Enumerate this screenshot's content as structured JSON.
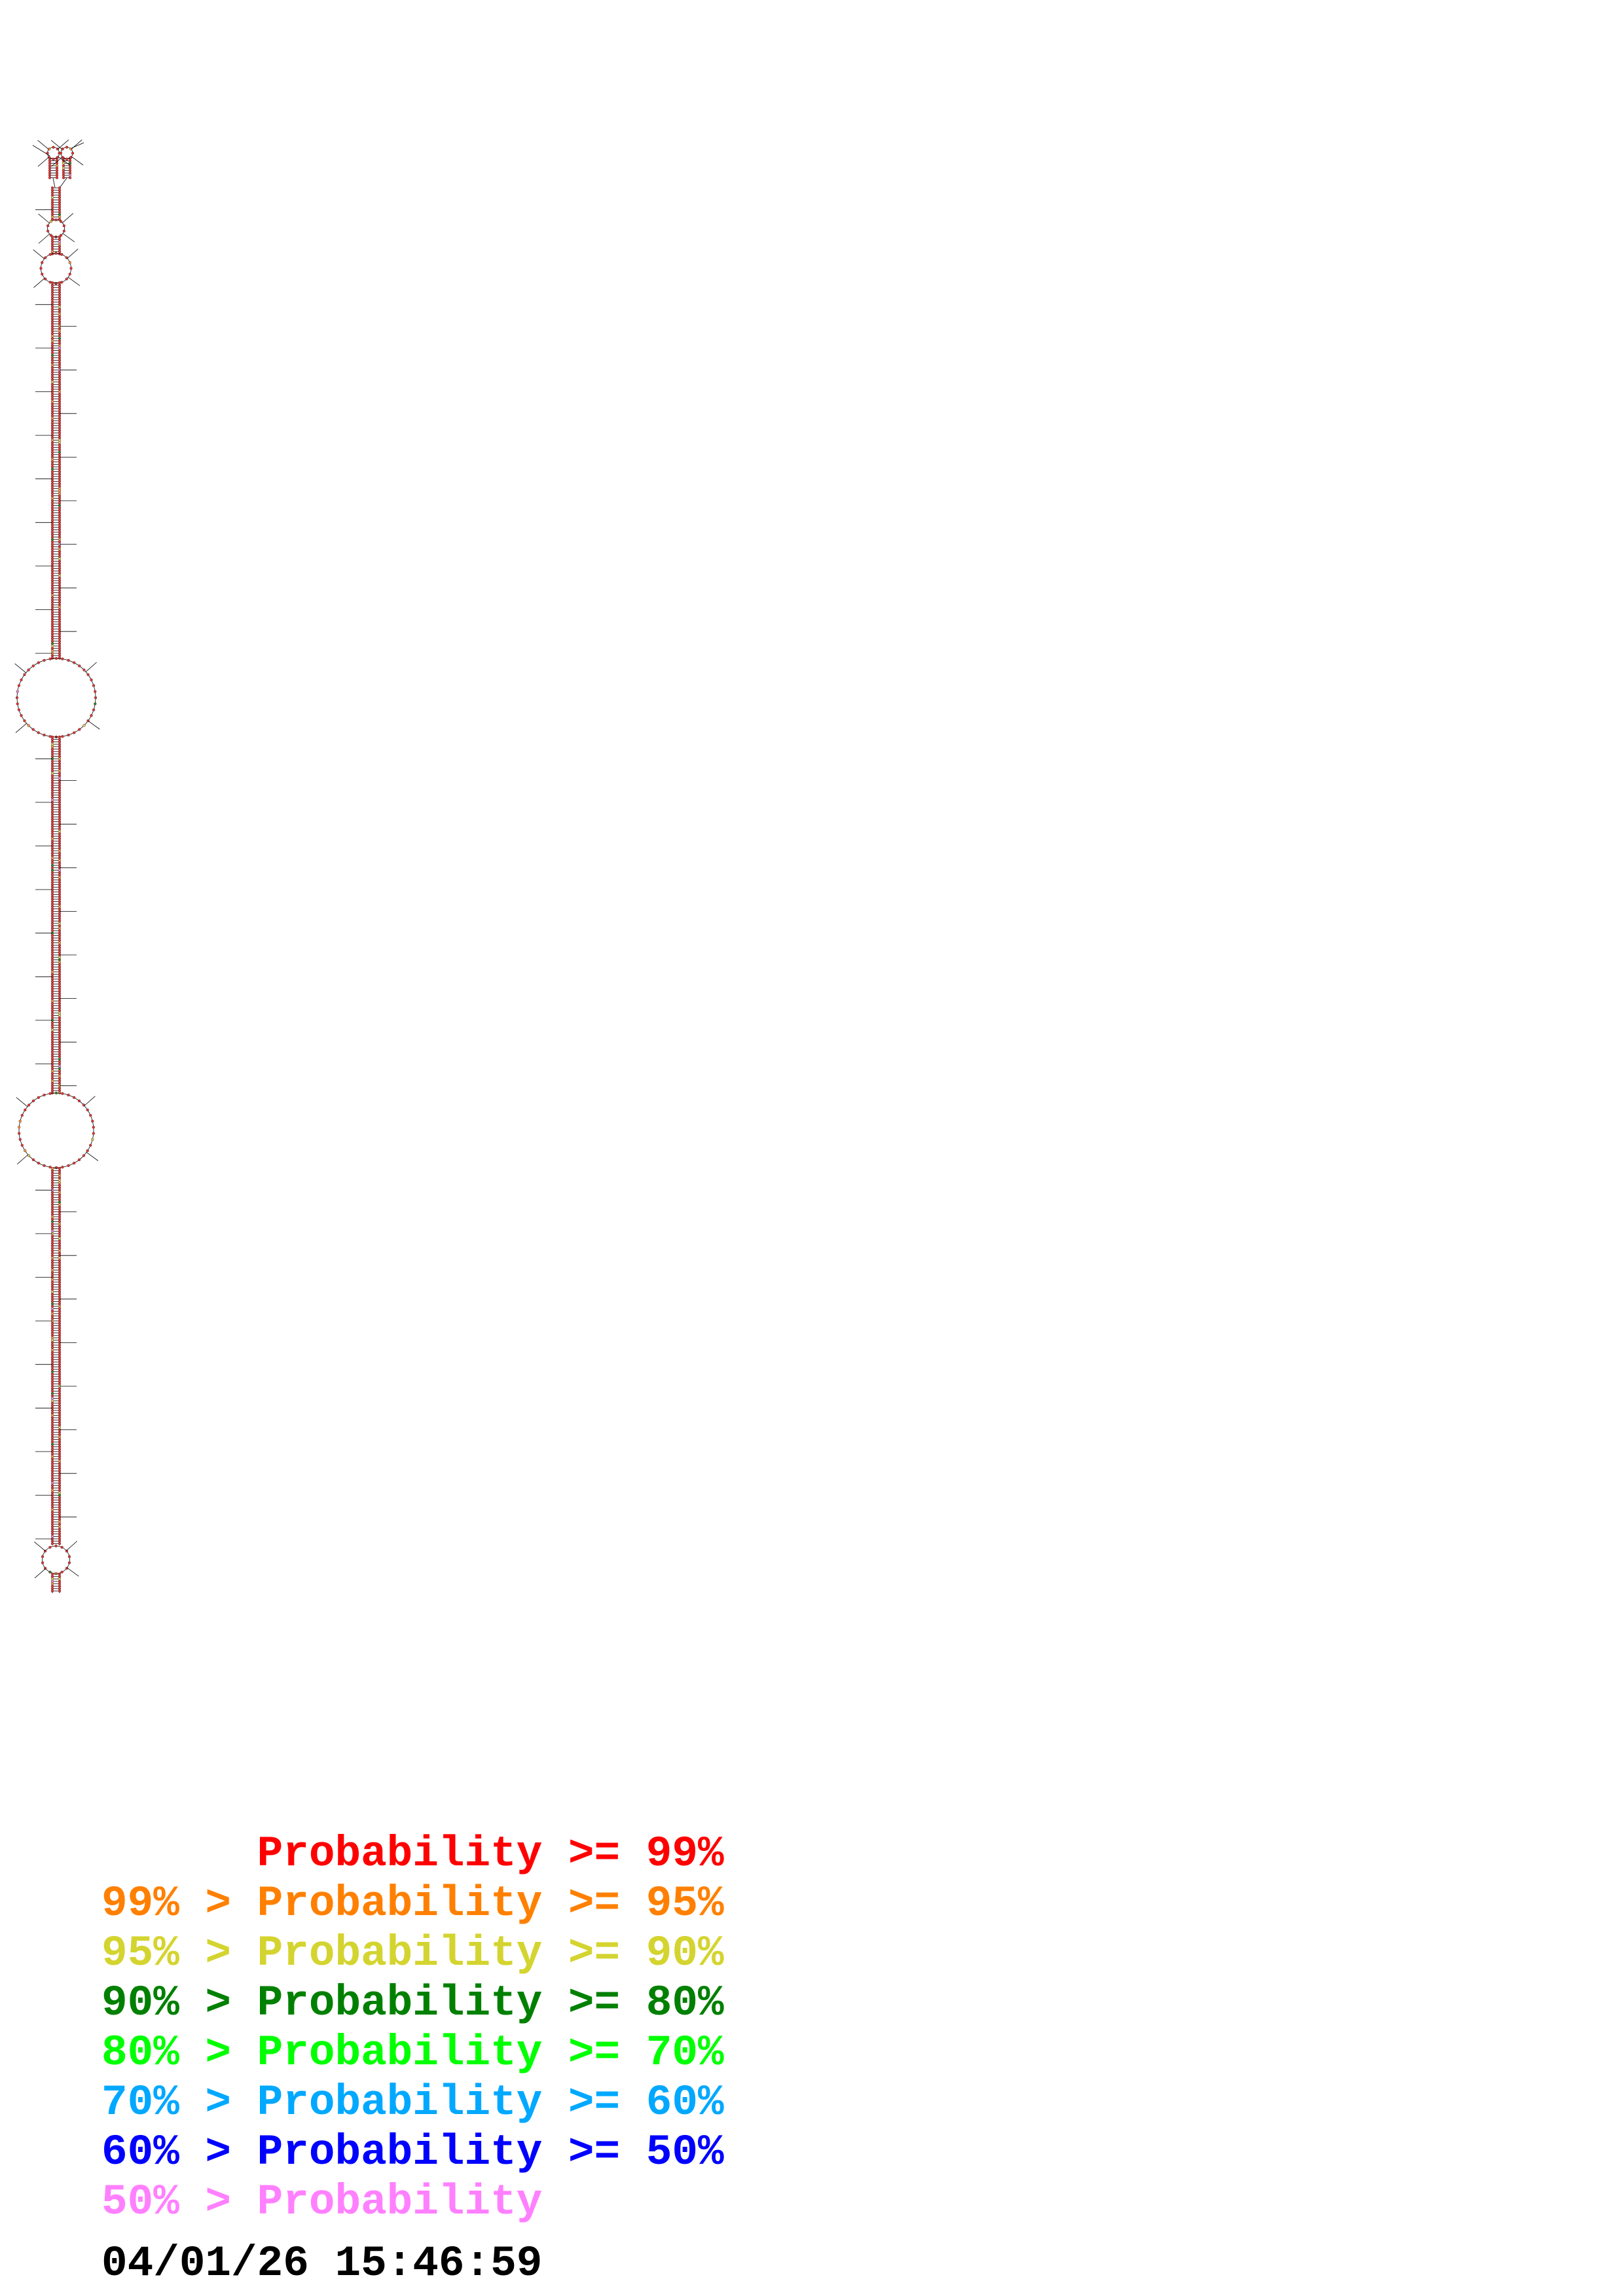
{
  "legend": [
    {
      "text": "      Probability >= 99%",
      "color": "#ff0000"
    },
    {
      "text": "99% > Probability >= 95%",
      "color": "#ff8000"
    },
    {
      "text": "95% > Probability >= 90%",
      "color": "#d4d430"
    },
    {
      "text": "90% > Probability >= 80%",
      "color": "#008000"
    },
    {
      "text": "80% > Probability >= 70%",
      "color": "#00ff00"
    },
    {
      "text": "70% > Probability >= 60%",
      "color": "#00a8ff"
    },
    {
      "text": "60% > Probability >= 50%",
      "color": "#0000ff"
    },
    {
      "text": "50% > Probability",
      "color": "#ff80ff"
    }
  ],
  "timestamp": "04/01/26 15:46:59",
  "nucleotide_colors": {
    "high": "#e03a3a",
    "p95": "#f0a040",
    "p90": "#d8d860",
    "p80": "#2a8a2a",
    "p70": "#40e040",
    "p60": "#40a8e8",
    "p50": "#2030c0",
    "low": "#e090e0"
  }
}
